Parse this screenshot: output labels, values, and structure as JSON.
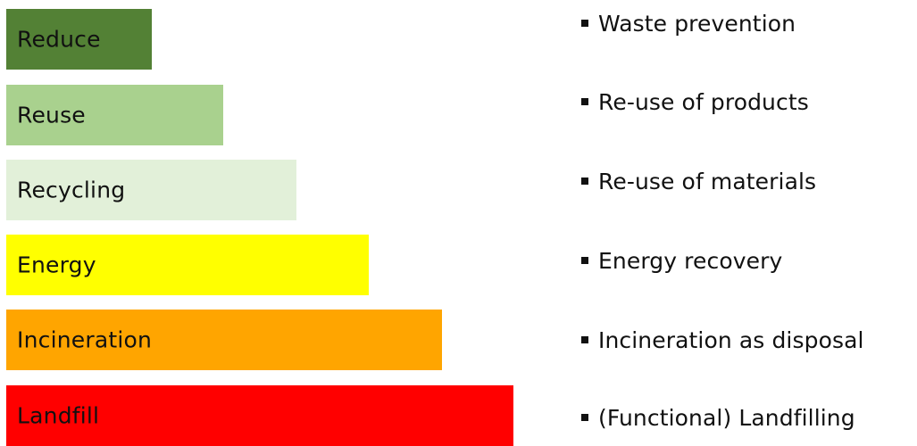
{
  "levels": [
    {
      "label": "Reduce",
      "description": "Waste prevention",
      "color": "#538135"
    },
    {
      "label": "Reuse",
      "description": "Re-use of products",
      "color": "#a9d18e"
    },
    {
      "label": "Recycling",
      "description": "Re-use of materials",
      "color": "#e2f0d9"
    },
    {
      "label": "Energy",
      "description": "Energy recovery",
      "color": "#ffff00"
    },
    {
      "label": "Incineration",
      "description": "Incineration as disposal",
      "color": "#ffa500"
    },
    {
      "label": "Landfill",
      "description": "(Functional) Landfilling",
      "color": "#ff0000"
    }
  ]
}
